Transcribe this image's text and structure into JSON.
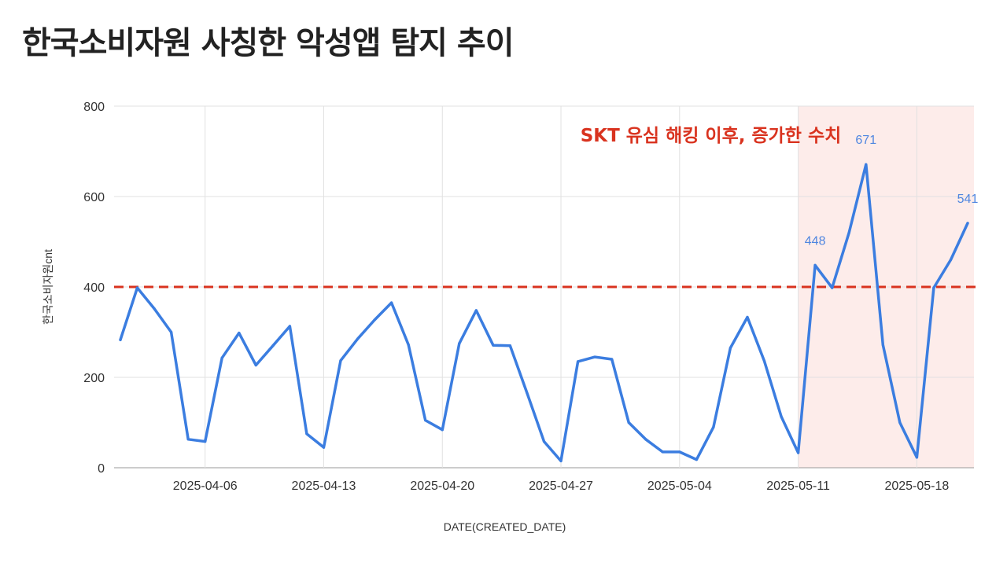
{
  "page_title": "한국소비자원 사칭한 악성앱 탐지 추이",
  "chart_data": {
    "type": "line",
    "title": "한국소비자원 사칭한 악성앱 탐지 추이",
    "xlabel": "DATE(CREATED_DATE)",
    "ylabel": "한국소비자원cnt",
    "ylim": [
      0,
      800
    ],
    "yticks": [
      0,
      200,
      400,
      600,
      800
    ],
    "xticks": [
      "2025-04-06",
      "2025-04-13",
      "2025-04-20",
      "2025-04-27",
      "2025-05-04",
      "2025-05-11",
      "2025-05-18"
    ],
    "grid": true,
    "line_color": "#3b7de0",
    "threshold": {
      "value": 400,
      "color": "#d9331f",
      "style": "dashed"
    },
    "highlight": {
      "from": "2025-05-11",
      "to": "2025-05-21",
      "color": "#fdecea"
    },
    "annotation": {
      "text": "SKT 유심 해킹 이후, 증가한 수치",
      "color": "#d9331f"
    },
    "series": [
      {
        "x": [
          "2025-04-01",
          "2025-04-02",
          "2025-04-03",
          "2025-04-04",
          "2025-04-05",
          "2025-04-06",
          "2025-04-07",
          "2025-04-08",
          "2025-04-09",
          "2025-04-10",
          "2025-04-11",
          "2025-04-12",
          "2025-04-13",
          "2025-04-14",
          "2025-04-15",
          "2025-04-16",
          "2025-04-17",
          "2025-04-18",
          "2025-04-19",
          "2025-04-20",
          "2025-04-21",
          "2025-04-22",
          "2025-04-23",
          "2025-04-24",
          "2025-04-25",
          "2025-04-26",
          "2025-04-27",
          "2025-04-28",
          "2025-04-29",
          "2025-04-30",
          "2025-05-01",
          "2025-05-02",
          "2025-05-03",
          "2025-05-04",
          "2025-05-05",
          "2025-05-06",
          "2025-05-07",
          "2025-05-08",
          "2025-05-09",
          "2025-05-10",
          "2025-05-11",
          "2025-05-12",
          "2025-05-13",
          "2025-05-14",
          "2025-05-15",
          "2025-05-16",
          "2025-05-17",
          "2025-05-18",
          "2025-05-19",
          "2025-05-20",
          "2025-05-21"
        ],
        "values": [
          283,
          398,
          352,
          300,
          63,
          58,
          243,
          298,
          227,
          270,
          313,
          75,
          45,
          237,
          285,
          327,
          365,
          272,
          105,
          84,
          275,
          348,
          271,
          270,
          165,
          58,
          15,
          235,
          245,
          240,
          100,
          63,
          35,
          35,
          18,
          90,
          265,
          333,
          236,
          113,
          33,
          448,
          398,
          520,
          671,
          272,
          100,
          23,
          398,
          460,
          541
        ]
      }
    ],
    "data_labels": [
      {
        "x": "2025-05-12",
        "label": "448"
      },
      {
        "x": "2025-05-15",
        "label": "671"
      },
      {
        "x": "2025-05-21",
        "label": "541"
      }
    ]
  }
}
